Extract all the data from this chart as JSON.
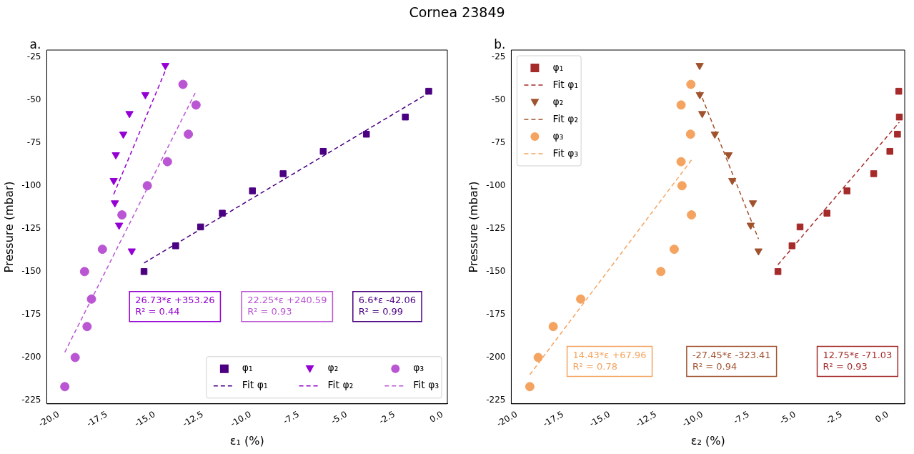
{
  "chart_data": [
    {
      "type": "scatter",
      "title": "Cornea 23849",
      "subtitle": "a.",
      "xlabel": "ε₁ (%)",
      "ylabel": "Pressure (mbar)",
      "xlim": [
        -20.63,
        0.25
      ],
      "ylim": [
        -227,
        -21
      ],
      "xticks": [
        {
          "value": -20,
          "label": "-20.0"
        },
        -17.5,
        {
          "value": -15,
          "label": "-15.0"
        },
        -12.5,
        {
          "value": -10,
          "label": "-10.0"
        },
        -7.5,
        {
          "value": -5,
          "label": "-5.0"
        },
        -2.5,
        {
          "value": 0,
          "label": "0.0"
        }
      ],
      "yticks": [
        -25,
        -50,
        -75,
        -100,
        -125,
        -150,
        -175,
        -200,
        -225
      ],
      "legend": "bottom right",
      "annotations": [
        "26.73*ε +353.26\nR² = 0.44",
        "22.25*ε +240.59\nR² = 0.93",
        "6.6*ε -42.06\nR² = 0.99"
      ],
      "series": [
        {
          "name": "φ₁",
          "type": "scatter",
          "marker": "square",
          "color": "#4b0082",
          "x": [
            -15.56,
            -13.91,
            -12.61,
            -11.48,
            -9.91,
            -8.31,
            -6.22,
            -3.97,
            -1.94,
            -0.72
          ],
          "values": [
            -150,
            -135,
            -124,
            -116,
            -103,
            -93,
            -80,
            -70,
            -60,
            -45
          ]
        },
        {
          "name": "Fit φ₁",
          "type": "line",
          "marker": "none",
          "line_style": "dashed",
          "color": "#4b0082",
          "x": [
            -15.56,
            -0.72
          ],
          "values": [
            -145,
            -46
          ]
        },
        {
          "name": "φ₂",
          "type": "scatter",
          "marker": "triangle",
          "color": "#9400d3",
          "x": [
            -14.45,
            -15.49,
            -16.32,
            -16.64,
            -17.03,
            -17.14,
            -17.08,
            -16.86,
            -16.2
          ],
          "values": [
            -30,
            -47,
            -58,
            -70,
            -82,
            -97,
            -110,
            -123,
            -138
          ]
        },
        {
          "name": "Fit φ₂",
          "type": "line",
          "marker": "none",
          "line_style": "dashed",
          "color": "#9400d3",
          "x": [
            -17.14,
            -14.45
          ],
          "values": [
            -105,
            -33
          ]
        },
        {
          "name": "φ₃",
          "type": "scatter",
          "marker": "circle",
          "color": "#ba55d3",
          "x": [
            -13.53,
            -12.85,
            -13.25,
            -14.34,
            -15.39,
            -16.71,
            -17.73,
            -18.66,
            -18.3,
            -18.53,
            -19.15,
            -19.69
          ],
          "values": [
            -41,
            -53,
            -70,
            -86,
            -100,
            -117,
            -137,
            -150,
            -166,
            -182,
            -200,
            -217
          ]
        },
        {
          "name": "Fit φ₃",
          "type": "line",
          "marker": "none",
          "line_style": "dashed",
          "color": "#ba55d3",
          "x": [
            -19.69,
            -12.85
          ],
          "values": [
            -197,
            -45
          ]
        }
      ]
    },
    {
      "type": "scatter",
      "subtitle": "b.",
      "xlabel": "ε₂ (%)",
      "ylabel": "Pressure (mbar)",
      "xlim": [
        -20.3,
        0.9
      ],
      "ylim": [
        -227,
        -21
      ],
      "xticks": [
        {
          "value": -20,
          "label": "-20.0"
        },
        -17.5,
        {
          "value": -15,
          "label": "-15.0"
        },
        -12.5,
        {
          "value": -10,
          "label": "-10.0"
        },
        -7.5,
        {
          "value": -5,
          "label": "-5.0"
        },
        -2.5,
        {
          "value": 0,
          "label": "0.0"
        }
      ],
      "yticks": [
        -25,
        -50,
        -75,
        -100,
        -125,
        -150,
        -175,
        -200,
        -225
      ],
      "legend": "top left",
      "annotations": [
        "14.43*ε +67.96\nR² = 0.78",
        "-27.45*ε -323.41\nR² = 0.94",
        "12.75*ε -71.03\nR² = 0.93"
      ],
      "series": [
        {
          "name": "φ₁",
          "type": "scatter",
          "marker": "square",
          "color": "#a52a2a",
          "x": [
            0.58,
            0.61,
            0.51,
            0.1,
            -0.77,
            -2.21,
            -3.29,
            -4.74,
            -5.17,
            -5.93
          ],
          "values": [
            -45,
            -60,
            -70,
            -80,
            -93,
            -103,
            -116,
            -124,
            -135,
            -150
          ]
        },
        {
          "name": "Fit φ₁",
          "type": "line",
          "marker": "none",
          "line_style": "dashed",
          "color": "#a52a2a",
          "x": [
            -5.93,
            0.61
          ],
          "values": [
            -146,
            -63
          ]
        },
        {
          "name": "φ₂",
          "type": "scatter",
          "marker": "triangle",
          "color": "#a0522d",
          "x": [
            -10.15,
            -10.14,
            -10.01,
            -9.33,
            -8.59,
            -8.39,
            -7.28,
            -7.4,
            -6.98
          ],
          "values": [
            -30,
            -47,
            -58,
            -70,
            -82,
            -97,
            -110,
            -123,
            -138
          ]
        },
        {
          "name": "Fit φ₂",
          "type": "line",
          "marker": "none",
          "line_style": "dashed",
          "color": "#a0522d",
          "x": [
            -10.15,
            -6.98
          ],
          "values": [
            -45,
            -131
          ]
        },
        {
          "name": "φ₃",
          "type": "scatter",
          "marker": "circle",
          "color": "#f4a460",
          "x": [
            -10.62,
            -11.15,
            -10.64,
            -11.15,
            -11.1,
            -10.59,
            -11.52,
            -12.24,
            -16.56,
            -18.04,
            -18.85,
            -19.3
          ],
          "values": [
            -41,
            -53,
            -70,
            -86,
            -100,
            -117,
            -137,
            -150,
            -166,
            -182,
            -200,
            -217
          ]
        },
        {
          "name": "Fit φ₃",
          "type": "line",
          "marker": "none",
          "line_style": "dashed",
          "color": "#f4a460",
          "x": [
            -19.3,
            -10.59
          ],
          "values": [
            -210,
            -85
          ]
        }
      ]
    }
  ]
}
